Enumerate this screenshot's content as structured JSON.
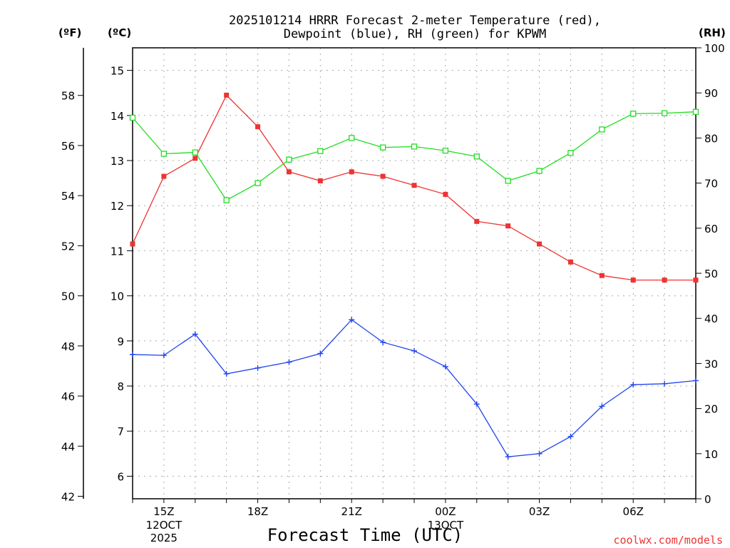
{
  "chart_data": {
    "type": "line",
    "title_line1": "2025101214 HRRR Forecast 2-meter Temperature (red),",
    "title_line2": "Dewpoint (blue), RH (green) for KPWM",
    "xlabel": "Forecast Time (UTC)",
    "credit": "coolwx.com/models",
    "units": {
      "fahrenheit": "(ºF)",
      "celsius": "(ºC)",
      "rh": "(RH)"
    },
    "x_hours": [
      14,
      15,
      16,
      17,
      18,
      19,
      20,
      21,
      22,
      23,
      0,
      1,
      2,
      3,
      4,
      5,
      6,
      7,
      8
    ],
    "x_ticks": [
      {
        "index": 1,
        "label": "15Z",
        "sub": [
          "12OCT",
          "2025"
        ]
      },
      {
        "index": 4,
        "label": "18Z",
        "sub": []
      },
      {
        "index": 7,
        "label": "21Z",
        "sub": []
      },
      {
        "index": 10,
        "label": "00Z",
        "sub": [
          "13OCT"
        ]
      },
      {
        "index": 13,
        "label": "03Z",
        "sub": []
      },
      {
        "index": 16,
        "label": "06Z",
        "sub": []
      }
    ],
    "celsius_axis": {
      "min": 5.5,
      "max": 15.5,
      "ticks": [
        6,
        7,
        8,
        9,
        10,
        11,
        12,
        13,
        14,
        15
      ]
    },
    "fahrenheit_axis": {
      "min": 41.9,
      "max": 59.9,
      "ticks": [
        42,
        44,
        46,
        48,
        50,
        52,
        54,
        56,
        58
      ]
    },
    "rh_axis": {
      "min": 0,
      "max": 100,
      "ticks": [
        0,
        10,
        20,
        30,
        40,
        50,
        60,
        70,
        80,
        90,
        100
      ]
    },
    "series": [
      {
        "name": "Temperature",
        "color": "#ee3333",
        "axis": "celsius",
        "marker": "filled-square",
        "values": [
          11.15,
          12.65,
          13.05,
          14.45,
          13.75,
          12.75,
          12.55,
          12.75,
          12.65,
          12.45,
          12.25,
          11.65,
          11.55,
          11.15,
          10.75,
          10.45,
          10.35,
          10.35,
          10.35
        ]
      },
      {
        "name": "Dewpoint",
        "color": "#2244ee",
        "axis": "celsius",
        "marker": "plus",
        "values": [
          8.7,
          8.68,
          9.15,
          8.27,
          8.4,
          8.53,
          8.72,
          9.47,
          8.97,
          8.78,
          8.43,
          7.6,
          6.43,
          6.5,
          6.88,
          7.55,
          8.03,
          8.05,
          8.12
        ]
      },
      {
        "name": "RH",
        "color": "#22dd22",
        "axis": "rh",
        "marker": "open-square",
        "values": [
          84.5,
          76.5,
          76.8,
          66.2,
          70.0,
          75.2,
          77.1,
          80.0,
          77.9,
          78.1,
          77.2,
          75.9,
          70.5,
          72.7,
          76.7,
          81.9,
          85.4,
          85.5,
          85.8
        ]
      }
    ]
  }
}
